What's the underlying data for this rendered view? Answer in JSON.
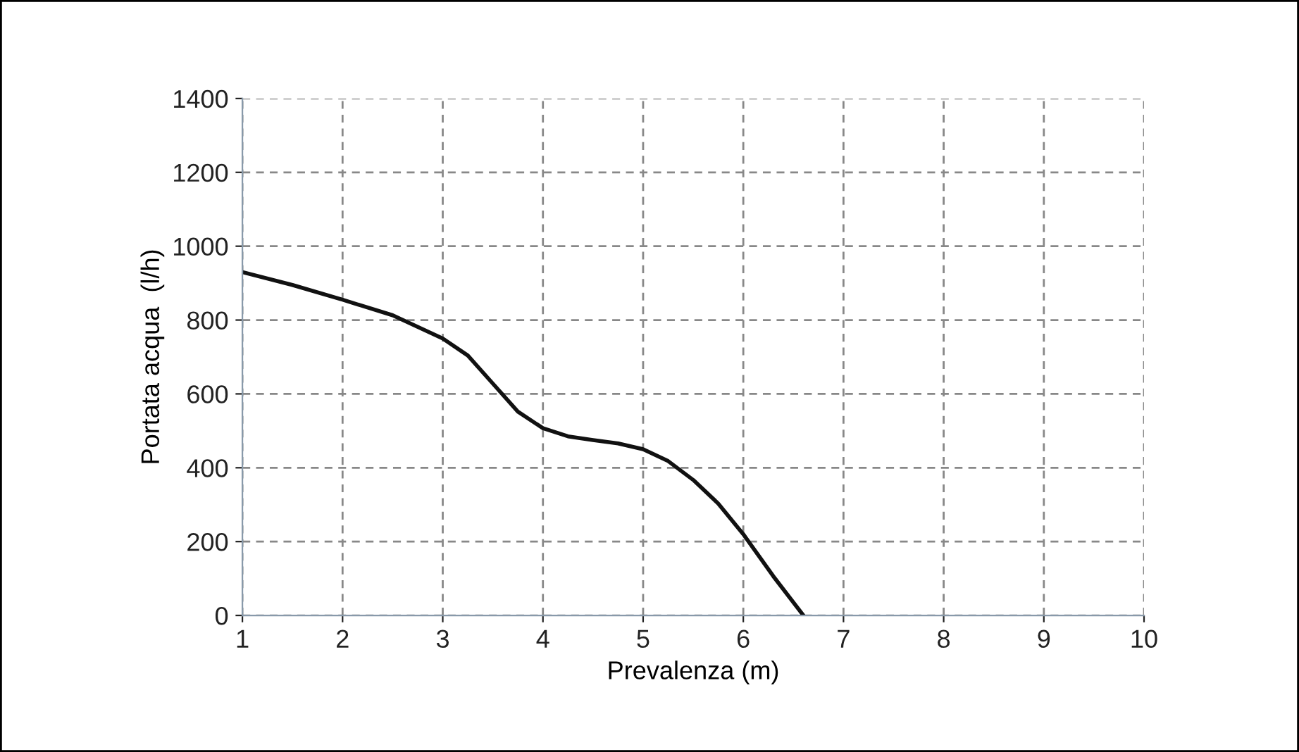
{
  "chart_data": {
    "type": "line",
    "xlabel": "Prevalenza (m)",
    "ylabel": "Portata acqua  (l/h)",
    "series": [
      {
        "color": "#111111",
        "x": [
          1,
          1.5,
          2,
          2.5,
          3,
          3.25,
          3.5,
          3.75,
          4,
          4.25,
          4.5,
          4.75,
          5,
          5.25,
          5.5,
          5.75,
          6,
          6.3,
          6.6
        ],
        "values": [
          930,
          895,
          855,
          813,
          750,
          704,
          628,
          552,
          507,
          485,
          475,
          466,
          450,
          418,
          367,
          303,
          220,
          106,
          0
        ]
      }
    ],
    "xlim": [
      1,
      10
    ],
    "xticks": [
      1,
      2,
      3,
      4,
      5,
      6,
      7,
      8,
      9,
      10
    ],
    "ylim": [
      0,
      1400
    ],
    "yticks": [
      0,
      200,
      400,
      600,
      800,
      1000,
      1200,
      1400
    ],
    "grid": true,
    "marker": "none",
    "line_style": "solid",
    "legend": false
  }
}
